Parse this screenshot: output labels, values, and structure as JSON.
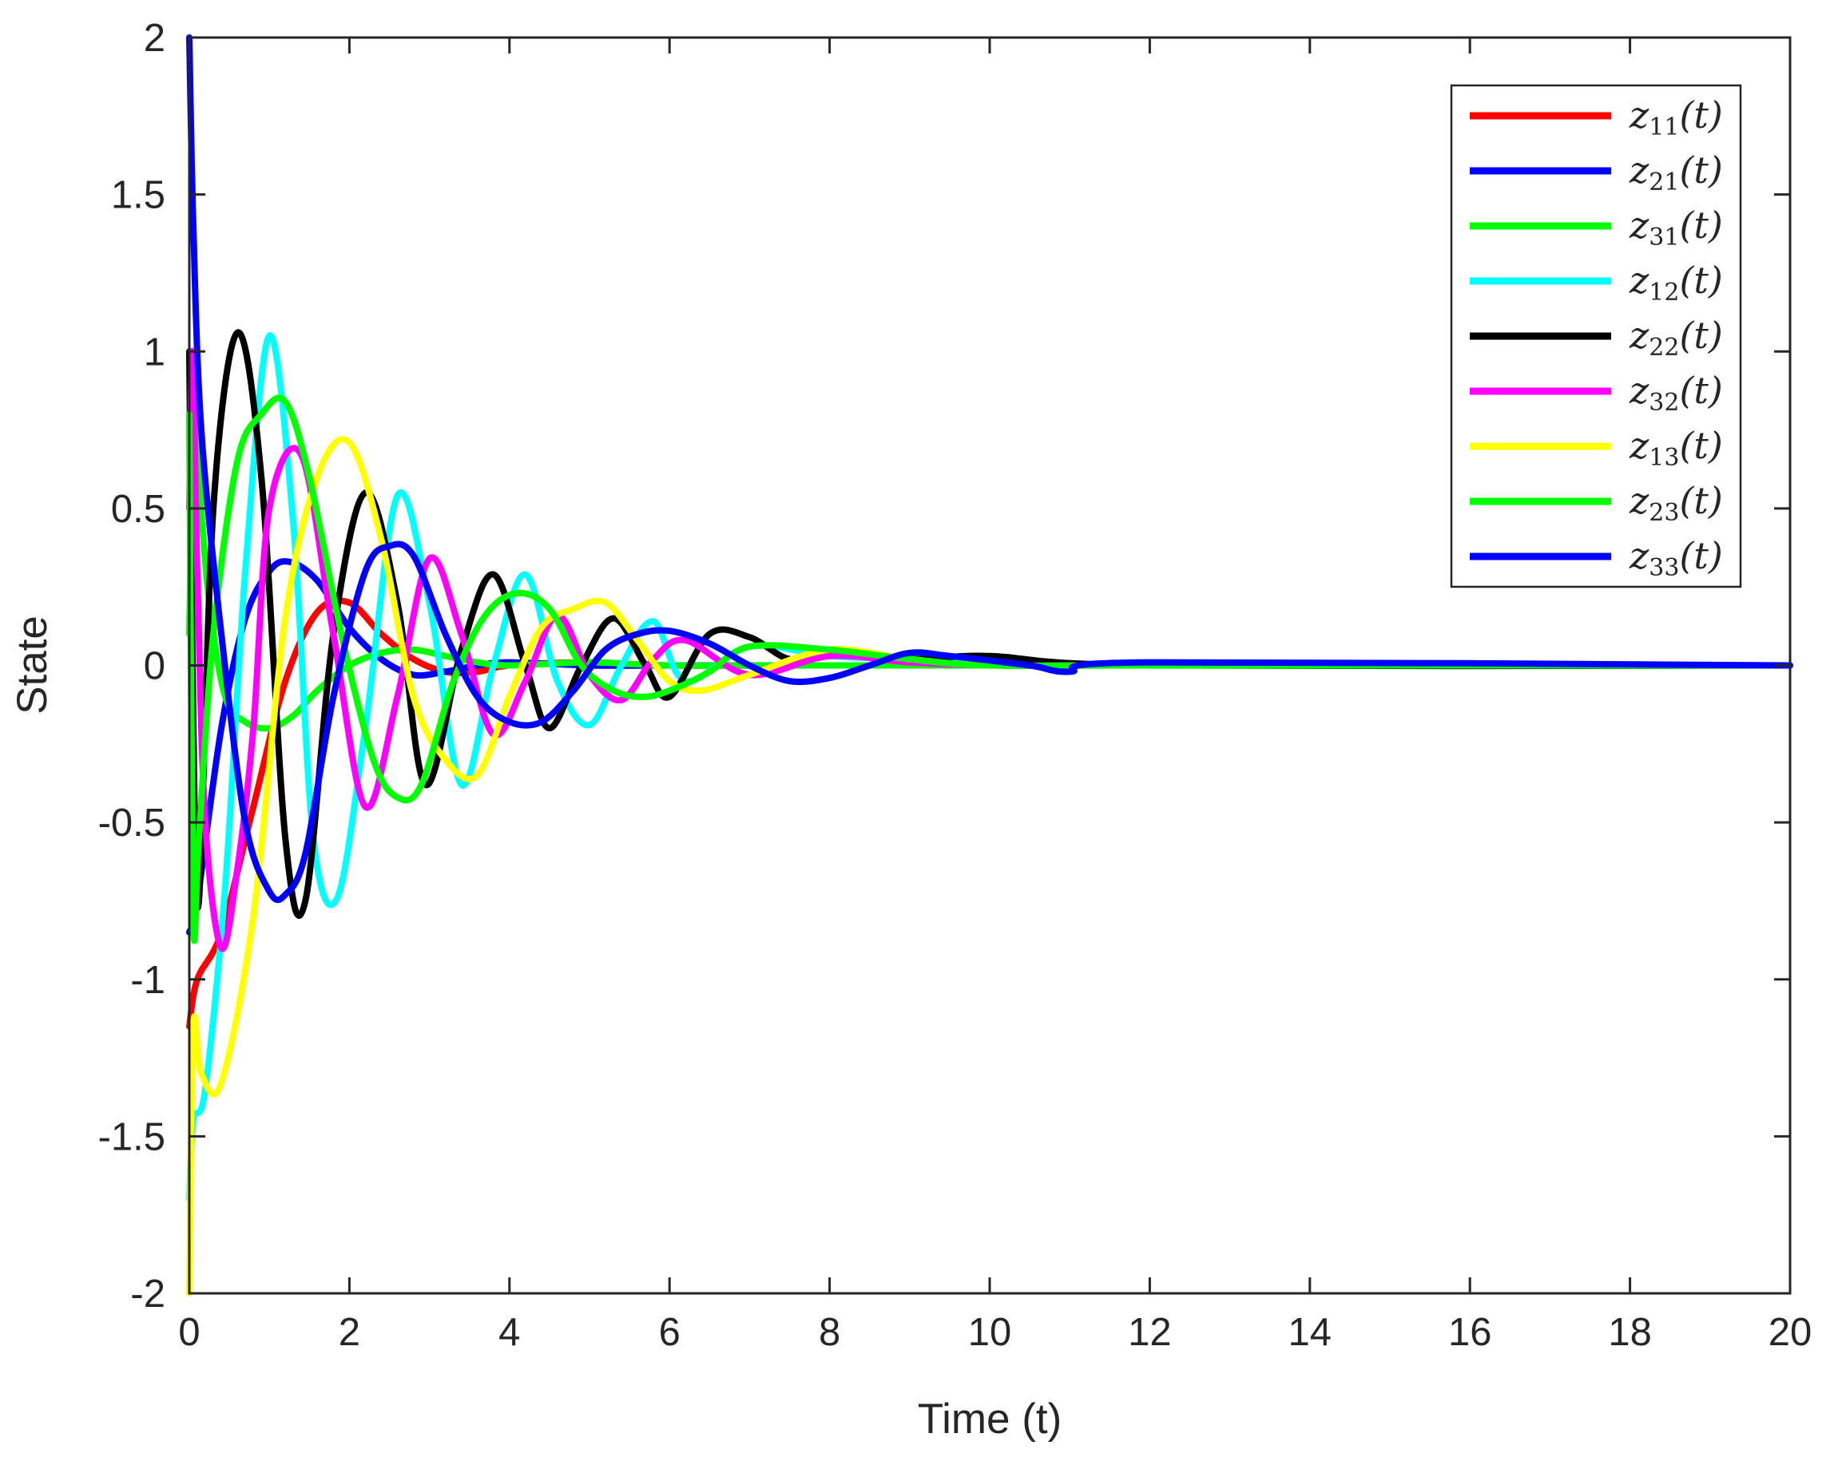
{
  "chart_data": {
    "type": "line",
    "xlabel": "Time (t)",
    "ylabel": "State",
    "xlim": [
      0,
      20
    ],
    "ylim": [
      -2,
      2
    ],
    "xticks": [
      0,
      2,
      4,
      6,
      8,
      10,
      12,
      14,
      16,
      18,
      20
    ],
    "yticks": [
      -2,
      -1.5,
      -1,
      -0.5,
      0,
      0.5,
      1,
      1.5,
      2
    ],
    "xtick_labels": [
      "0",
      "2",
      "4",
      "6",
      "8",
      "10",
      "12",
      "14",
      "16",
      "18",
      "20"
    ],
    "ytick_labels": [
      "-2",
      "-1.5",
      "-1",
      "-0.5",
      "0",
      "0.5",
      "1",
      "1.5",
      "2"
    ],
    "grid": false,
    "legend_position": "top-right",
    "series": [
      {
        "name": "z11(t)",
        "base": "z",
        "sub": "11",
        "color": "#ff0000",
        "x": [
          0,
          0.1,
          0.4,
          0.8,
          1.2,
          1.6,
          2.0,
          2.4,
          2.8,
          3.2,
          3.6,
          4.0,
          5.0,
          6.0,
          8.0,
          20
        ],
        "y": [
          -1.15,
          -1.0,
          -0.85,
          -0.45,
          -0.05,
          0.17,
          0.2,
          0.1,
          0.02,
          -0.02,
          -0.02,
          0.0,
          0.01,
          0.0,
          0.0,
          0.0
        ]
      },
      {
        "name": "z21(t)",
        "base": "z",
        "sub": "21",
        "color": "#0000ff",
        "x": [
          0,
          0.1,
          0.4,
          0.7,
          1.0,
          1.25,
          1.6,
          2.0,
          2.4,
          2.8,
          3.2,
          3.6,
          4.0,
          5.0,
          6.0,
          8.0,
          20
        ],
        "y": [
          -0.85,
          -0.75,
          -0.2,
          0.15,
          0.3,
          0.33,
          0.27,
          0.12,
          0.02,
          -0.03,
          -0.02,
          0.0,
          0.01,
          0.0,
          0.0,
          0.0,
          0.0
        ]
      },
      {
        "name": "z31(t)",
        "base": "z",
        "sub": "31",
        "color": "#00ff00",
        "x": [
          0,
          0.06,
          0.12,
          0.25,
          0.45,
          0.7,
          1.0,
          1.3,
          1.6,
          2.0,
          2.4,
          2.8,
          3.2,
          3.6,
          4.0,
          5.0,
          6.0,
          8.0,
          20
        ],
        "y": [
          0.1,
          0.9,
          0.6,
          0.2,
          -0.1,
          -0.18,
          -0.2,
          -0.16,
          -0.08,
          0.0,
          0.04,
          0.05,
          0.03,
          0.01,
          0.0,
          0.01,
          0.0,
          0.0,
          0.0
        ]
      },
      {
        "name": "z12(t)",
        "base": "z",
        "sub": "12",
        "color": "#00ffff",
        "x": [
          0,
          0.05,
          0.2,
          0.45,
          0.7,
          1.0,
          1.3,
          1.55,
          1.85,
          2.2,
          2.6,
          3.0,
          3.4,
          3.8,
          4.2,
          4.6,
          5.0,
          5.4,
          5.8,
          6.2,
          7.0,
          8.0,
          9.0,
          10.0,
          12.0,
          20
        ],
        "y": [
          -1.7,
          -1.45,
          -1.35,
          -0.7,
          0.3,
          1.05,
          0.45,
          -0.55,
          -0.74,
          -0.2,
          0.54,
          0.2,
          -0.38,
          0.0,
          0.29,
          -0.05,
          -0.19,
          0.0,
          0.14,
          -0.05,
          0.06,
          0.03,
          0.02,
          0.01,
          0.0,
          0.0
        ]
      },
      {
        "name": "z22(t)",
        "base": "z",
        "sub": "22",
        "color": "#000000",
        "x": [
          0,
          0.05,
          0.12,
          0.3,
          0.6,
          0.9,
          1.2,
          1.45,
          1.8,
          2.2,
          2.6,
          2.95,
          3.4,
          3.8,
          4.2,
          4.5,
          4.9,
          5.3,
          5.7,
          6.0,
          6.5,
          7.0,
          7.5,
          8.0,
          9.0,
          10.0,
          12.0,
          20
        ],
        "y": [
          1.0,
          -0.2,
          -0.75,
          0.5,
          1.06,
          0.6,
          -0.55,
          -0.75,
          0.1,
          0.55,
          0.2,
          -0.38,
          0.05,
          0.29,
          0.0,
          -0.2,
          0.0,
          0.15,
          0.0,
          -0.1,
          0.1,
          0.09,
          0.02,
          0.04,
          0.02,
          0.03,
          0.0,
          0.0
        ]
      },
      {
        "name": "z32(t)",
        "base": "z",
        "sub": "32",
        "color": "#ff00ff",
        "x": [
          0,
          0.04,
          0.1,
          0.2,
          0.4,
          0.6,
          0.8,
          1.0,
          1.4,
          1.8,
          2.2,
          2.6,
          3.0,
          3.4,
          3.8,
          4.2,
          4.6,
          5.0,
          5.4,
          5.8,
          6.2,
          7.0,
          8.0,
          9.0,
          10.0,
          12.0,
          20
        ],
        "y": [
          0.5,
          1.0,
          0.3,
          -0.5,
          -0.9,
          -0.65,
          -0.2,
          0.5,
          0.67,
          0.1,
          -0.45,
          -0.1,
          0.34,
          0.1,
          -0.22,
          -0.05,
          0.16,
          -0.03,
          -0.11,
          0.02,
          0.08,
          -0.03,
          0.03,
          0.01,
          0.0,
          0.0,
          0.0
        ]
      },
      {
        "name": "z13(t)",
        "base": "z",
        "sub": "13",
        "color": "#ffff00",
        "x": [
          0,
          0.05,
          0.15,
          0.4,
          0.8,
          1.2,
          1.6,
          2.0,
          2.4,
          2.8,
          3.2,
          3.6,
          4.0,
          4.4,
          4.8,
          5.2,
          5.6,
          6.0,
          6.4,
          7.0,
          8.0,
          9.0,
          10.0,
          12.0,
          20
        ],
        "y": [
          -2.0,
          -1.15,
          -1.3,
          -1.33,
          -0.8,
          0.15,
          0.6,
          0.71,
          0.4,
          -0.1,
          -0.3,
          -0.35,
          -0.1,
          0.12,
          0.18,
          0.2,
          0.08,
          -0.05,
          -0.08,
          -0.03,
          0.05,
          0.02,
          0.0,
          0.0,
          0.0
        ]
      },
      {
        "name": "z23(t)",
        "base": "z",
        "sub": "23",
        "color": "#00ff00",
        "x": [
          0,
          0.05,
          0.12,
          0.3,
          0.6,
          0.9,
          1.2,
          1.5,
          1.9,
          2.3,
          2.6,
          2.9,
          3.3,
          3.7,
          4.1,
          4.5,
          4.9,
          5.3,
          5.7,
          6.1,
          6.5,
          7.0,
          8.0,
          9.0,
          10.0,
          12.0,
          20
        ],
        "y": [
          0.8,
          -0.8,
          -0.55,
          0.1,
          0.65,
          0.8,
          0.84,
          0.6,
          0.1,
          -0.3,
          -0.42,
          -0.38,
          -0.05,
          0.16,
          0.23,
          0.18,
          0.0,
          -0.08,
          -0.1,
          -0.07,
          -0.02,
          0.06,
          0.05,
          0.02,
          0.0,
          0.0,
          0.0
        ]
      },
      {
        "name": "z33(t)",
        "base": "z",
        "sub": "33",
        "color": "#0000ff",
        "x": [
          0,
          0.05,
          0.15,
          0.4,
          0.7,
          1.0,
          1.2,
          1.45,
          1.8,
          2.2,
          2.5,
          2.8,
          3.2,
          3.6,
          4.0,
          4.4,
          4.8,
          5.2,
          5.6,
          6.0,
          6.5,
          7.0,
          7.5,
          8.0,
          8.5,
          9.0,
          9.5,
          10.5,
          11.0,
          12.0,
          20
        ],
        "y": [
          2.0,
          1.4,
          0.75,
          0.1,
          -0.5,
          -0.72,
          -0.73,
          -0.6,
          -0.1,
          0.3,
          0.38,
          0.35,
          0.1,
          -0.1,
          -0.18,
          -0.18,
          -0.08,
          0.05,
          0.1,
          0.11,
          0.07,
          0.0,
          -0.05,
          -0.04,
          0.0,
          0.04,
          0.03,
          0.0,
          -0.02,
          0.01,
          0.0
        ]
      }
    ]
  }
}
